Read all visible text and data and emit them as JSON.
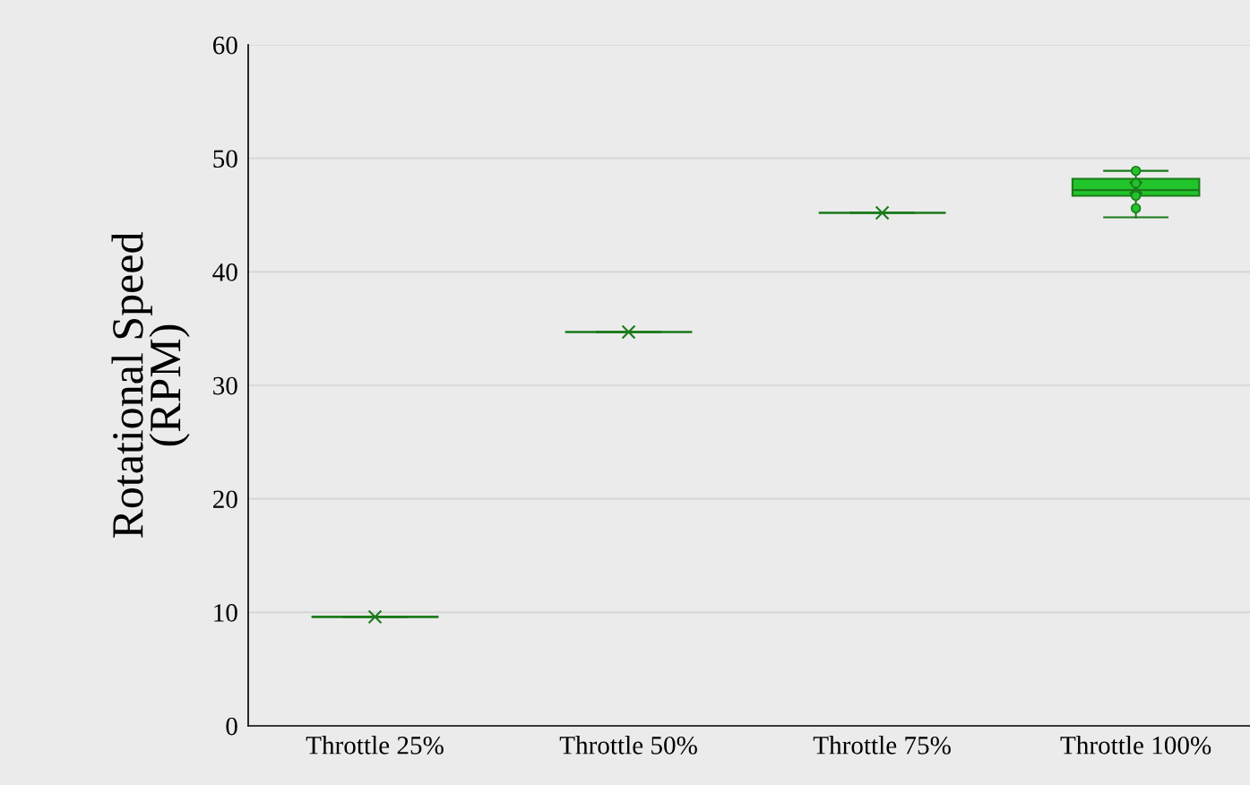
{
  "chart_data": {
    "type": "box",
    "ylabel": "Rotational Speed\n(RPM)",
    "categories": [
      "Throttle 25%",
      "Throttle 50%",
      "Throttle 75%",
      "Throttle 100%"
    ],
    "series": [
      {
        "type": "box",
        "colors": [
          "#1a7a1a",
          "#1a7a1a",
          "#1a7a1a",
          "#22c42c"
        ],
        "boxes": [
          {
            "low": 9.6,
            "q1": 9.6,
            "median": 9.6,
            "q3": 9.6,
            "high": 9.6,
            "mean": 9.6
          },
          {
            "low": 34.7,
            "q1": 34.7,
            "median": 34.7,
            "q3": 34.7,
            "high": 34.7,
            "mean": 34.7
          },
          {
            "low": 45.2,
            "q1": 45.2,
            "median": 45.2,
            "q3": 45.2,
            "high": 45.2,
            "mean": 45.2
          },
          {
            "low": 44.8,
            "q1": 46.7,
            "median": 47.2,
            "q3": 48.2,
            "high": 48.9,
            "mean": 47.4
          }
        ]
      },
      {
        "type": "scatter",
        "color": "#22c42c",
        "x": [
          "Throttle 100%",
          "Throttle 100%",
          "Throttle 100%",
          "Throttle 100%"
        ],
        "values": [
          48.9,
          47.8,
          46.7,
          45.6
        ]
      }
    ],
    "ylim": [
      0,
      60
    ],
    "yticks": [
      0,
      10,
      20,
      30,
      40,
      50,
      60
    ],
    "grid": "y",
    "legend": false
  }
}
